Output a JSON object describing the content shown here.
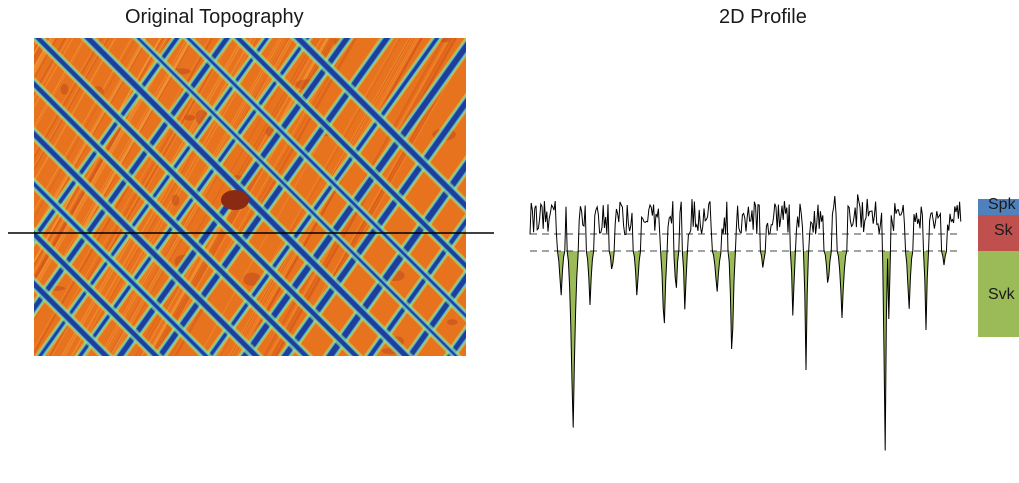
{
  "titles": {
    "left": "Original Topography",
    "right": "2D Profile"
  },
  "bands": [
    {
      "label": "Spk",
      "color": "#4f81bd"
    },
    {
      "label": "Sk",
      "color": "#c0504d"
    },
    {
      "label": "Svk",
      "color": "#9bbb59"
    }
  ],
  "colors": {
    "topo_base": "#e8731f",
    "topo_scratch_dark": "#1d3f9a",
    "topo_scratch_mid": "#3a6fd6",
    "topo_halo": "#5fd3c0",
    "topo_halo_light": "#b5e86a",
    "profile_line": "#000000",
    "valley_fill": "#9bbb59",
    "section_line": "#000000"
  }
}
